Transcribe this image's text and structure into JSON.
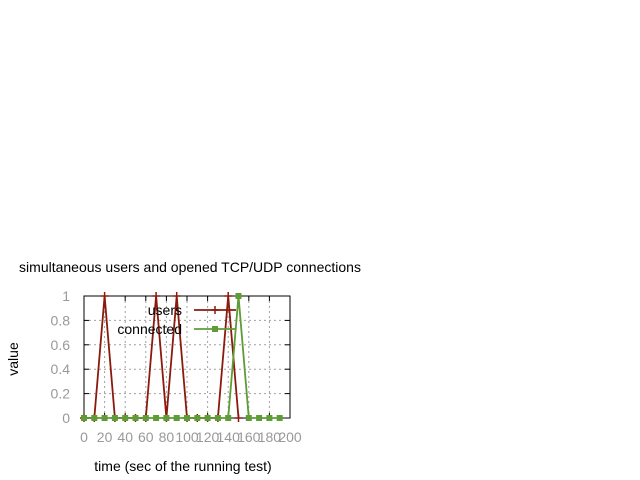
{
  "chart_data": {
    "type": "line",
    "title": "simultaneous users and opened TCP/UDP connections",
    "xlabel": "time (sec of the running test)",
    "ylabel": "value",
    "xlim": [
      0,
      200
    ],
    "ylim": [
      0,
      1
    ],
    "xticks": [
      0,
      20,
      40,
      60,
      80,
      100,
      120,
      140,
      160,
      180,
      200
    ],
    "yticks": [
      0,
      0.2,
      0.4,
      0.6,
      0.8,
      1
    ],
    "grid": true,
    "legend_position": "top-right",
    "series": [
      {
        "name": "users",
        "color": "#8b1a0e",
        "marker": "plus",
        "x": [
          0,
          10,
          20,
          30,
          40,
          50,
          60,
          70,
          80,
          90,
          100,
          110,
          120,
          130,
          140,
          150
        ],
        "y": [
          0,
          0,
          1,
          0,
          0,
          0,
          0,
          1,
          0,
          1,
          0,
          0,
          0,
          0,
          1,
          0
        ]
      },
      {
        "name": "connected",
        "color": "#5e9c36",
        "marker": "square",
        "x": [
          0,
          10,
          20,
          30,
          40,
          50,
          60,
          70,
          80,
          90,
          100,
          110,
          120,
          130,
          140,
          150,
          160,
          170,
          180,
          190
        ],
        "y": [
          0,
          0,
          0,
          0,
          0,
          0,
          0,
          0,
          0,
          0,
          0,
          0,
          0,
          0,
          0,
          1,
          0,
          0,
          0,
          0
        ]
      }
    ]
  }
}
